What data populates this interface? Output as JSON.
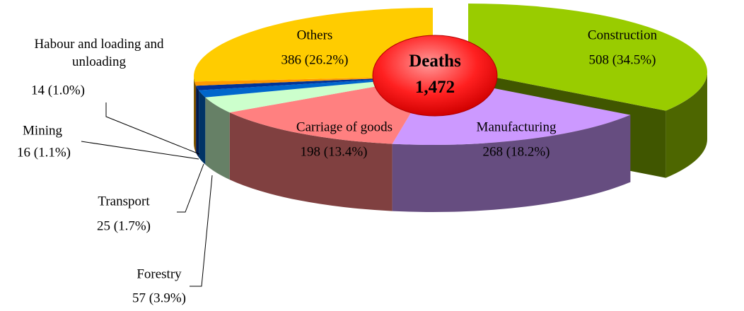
{
  "chart_data": {
    "type": "pie",
    "categories": [
      "Construction",
      "Manufacturing",
      "Carriage of goods",
      "Forestry",
      "Transport",
      "Mining",
      "Habour and loading and unloading",
      "Others"
    ],
    "values": [
      508,
      268,
      198,
      57,
      25,
      16,
      14,
      386
    ],
    "value_labels": [
      "508 (34.5%)",
      "268 (18.2%)",
      "198 (13.4%)",
      "57 (3.9%)",
      "25 (1.7%)",
      "16 (1.1%)",
      "14 (1.0%)",
      "386 (26.2%)"
    ],
    "colors": [
      "#99cc00",
      "#cc99ff",
      "#ff8080",
      "#ccffcc",
      "#0066cc",
      "#003399",
      "#ff9900",
      "#ffcc00"
    ],
    "center_title": "Deaths",
    "total": {
      "value": 1472,
      "label": "1,472"
    }
  }
}
